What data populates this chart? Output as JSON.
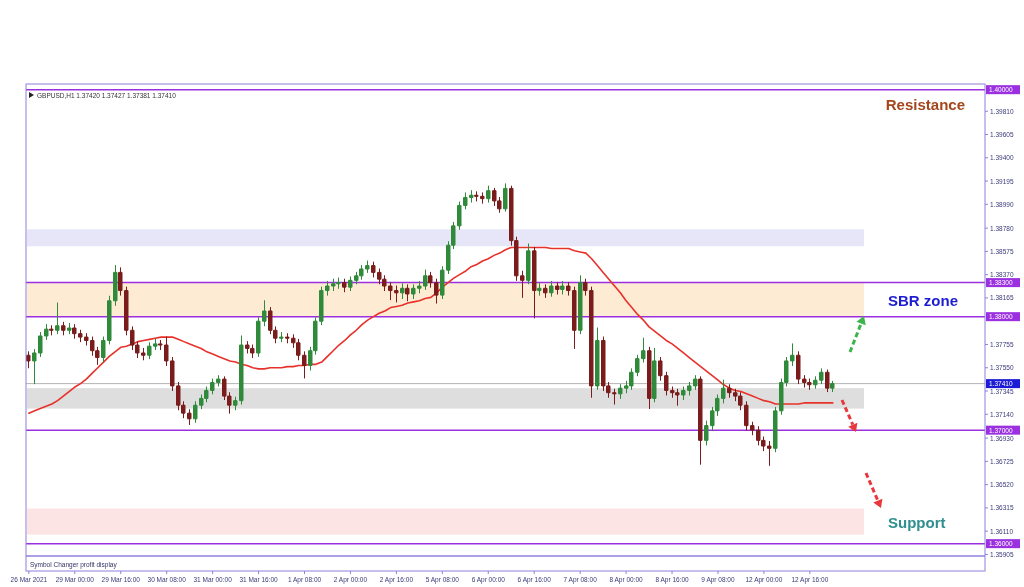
{
  "chart_data": {
    "type": "candlestick",
    "title": "GBPUSD,H1 1.37420 1.37427 1.37381 1.37410",
    "categories": [
      "26 Mar 2021",
      null,
      null,
      null,
      null,
      null,
      null,
      null,
      "29 Mar 00:00",
      null,
      null,
      null,
      null,
      null,
      null,
      null,
      "29 Mar 16:00",
      null,
      null,
      null,
      null,
      null,
      null,
      null,
      "30 Mar 08:00",
      null,
      null,
      null,
      null,
      null,
      null,
      null,
      "31 Mar 00:00",
      null,
      null,
      null,
      null,
      null,
      null,
      null,
      "31 Mar 16:00",
      null,
      null,
      null,
      null,
      null,
      null,
      null,
      "1 Apr 08:00",
      null,
      null,
      null,
      null,
      null,
      null,
      null,
      "2 Apr 00:00",
      null,
      null,
      null,
      null,
      null,
      null,
      null,
      "2 Apr 16:00",
      null,
      null,
      null,
      null,
      null,
      null,
      null,
      "5 Apr 08:00",
      null,
      null,
      null,
      null,
      null,
      null,
      null,
      "6 Apr 00:00",
      null,
      null,
      null,
      null,
      null,
      null,
      null,
      "6 Apr 16:00",
      null,
      null,
      null,
      null,
      null,
      null,
      null,
      "7 Apr 08:00",
      null,
      null,
      null,
      null,
      null,
      null,
      null,
      "8 Apr 00:00",
      null,
      null,
      null,
      null,
      null,
      null,
      null,
      "8 Apr 16:00",
      null,
      null,
      null,
      null,
      null,
      null,
      null,
      "9 Apr 08:00",
      null,
      null,
      null,
      null,
      null,
      null,
      null,
      "12 Apr 00:00",
      null,
      null,
      null,
      null,
      null,
      null,
      null,
      "12 Apr 16:00",
      null,
      null,
      null,
      null,
      null,
      null,
      null,
      null,
      null,
      null,
      null,
      null,
      null,
      null,
      null,
      null,
      null,
      null,
      null,
      null,
      null,
      null,
      null,
      null,
      null,
      null,
      null,
      null,
      null,
      null
    ],
    "ohlc": [
      [
        1.3766,
        1.3769,
        1.3755,
        1.3761
      ],
      [
        1.3761,
        1.3771,
        1.3741,
        1.3768
      ],
      [
        1.3768,
        1.3786,
        1.3765,
        1.3783
      ],
      [
        1.3783,
        1.3793,
        1.378,
        1.3789
      ],
      [
        1.3789,
        1.3792,
        1.3784,
        1.3788
      ],
      [
        1.3788,
        1.3812,
        1.3785,
        1.3792
      ],
      [
        1.3792,
        1.3795,
        1.3784,
        1.3788
      ],
      [
        1.3788,
        1.3794,
        1.3785,
        1.379
      ],
      [
        1.379,
        1.3793,
        1.3781,
        1.3785
      ],
      [
        1.3785,
        1.3788,
        1.3778,
        1.3782
      ],
      [
        1.3782,
        1.3785,
        1.3775,
        1.3779
      ],
      [
        1.3779,
        1.3782,
        1.3766,
        1.377
      ],
      [
        1.377,
        1.3773,
        1.3758,
        1.3764
      ],
      [
        1.3764,
        1.3782,
        1.376,
        1.3779
      ],
      [
        1.3779,
        1.3818,
        1.3776,
        1.3814
      ],
      [
        1.3814,
        1.3845,
        1.381,
        1.3839
      ],
      [
        1.3839,
        1.3843,
        1.3819,
        1.3823
      ],
      [
        1.3823,
        1.3826,
        1.3784,
        1.3788
      ],
      [
        1.3788,
        1.3791,
        1.3771,
        1.3775
      ],
      [
        1.3775,
        1.3778,
        1.3764,
        1.3768
      ],
      [
        1.3768,
        1.3772,
        1.3762,
        1.3766
      ],
      [
        1.3766,
        1.3777,
        1.3763,
        1.3774
      ],
      [
        1.3774,
        1.378,
        1.3771,
        1.3776
      ],
      [
        1.3776,
        1.3779,
        1.3771,
        1.3775
      ],
      [
        1.3775,
        1.3782,
        1.3757,
        1.3761
      ],
      [
        1.3761,
        1.3764,
        1.3735,
        1.3739
      ],
      [
        1.3739,
        1.3742,
        1.3718,
        1.3722
      ],
      [
        1.3722,
        1.3725,
        1.3711,
        1.3715
      ],
      [
        1.3715,
        1.3718,
        1.3705,
        1.371
      ],
      [
        1.371,
        1.3725,
        1.3707,
        1.3722
      ],
      [
        1.3722,
        1.3731,
        1.3719,
        1.3728
      ],
      [
        1.3728,
        1.3738,
        1.3725,
        1.3735
      ],
      [
        1.3735,
        1.3745,
        1.3732,
        1.3742
      ],
      [
        1.3742,
        1.3748,
        1.3739,
        1.3745
      ],
      [
        1.3745,
        1.3747,
        1.3727,
        1.373
      ],
      [
        1.373,
        1.3733,
        1.3715,
        1.3722
      ],
      [
        1.3722,
        1.3729,
        1.3718,
        1.3726
      ],
      [
        1.3726,
        1.3783,
        1.3723,
        1.3775
      ],
      [
        1.3775,
        1.3778,
        1.3768,
        1.3772
      ],
      [
        1.3772,
        1.3775,
        1.3764,
        1.3768
      ],
      [
        1.3768,
        1.3799,
        1.3765,
        1.3796
      ],
      [
        1.3796,
        1.3814,
        1.3792,
        1.3805
      ],
      [
        1.3805,
        1.3808,
        1.3785,
        1.3788
      ],
      [
        1.3788,
        1.3791,
        1.3777,
        1.3781
      ],
      [
        1.3781,
        1.3786,
        1.3778,
        1.3782
      ],
      [
        1.3782,
        1.3785,
        1.3777,
        1.3781
      ],
      [
        1.3781,
        1.3784,
        1.3773,
        1.3777
      ],
      [
        1.3777,
        1.378,
        1.3762,
        1.3766
      ],
      [
        1.3766,
        1.3769,
        1.3746,
        1.3757
      ],
      [
        1.3757,
        1.3773,
        1.3753,
        1.377
      ],
      [
        1.377,
        1.3799,
        1.3767,
        1.3796
      ],
      [
        1.3796,
        1.3826,
        1.3793,
        1.3823
      ],
      [
        1.3823,
        1.3831,
        1.3819,
        1.3827
      ],
      [
        1.3827,
        1.3833,
        1.3823,
        1.3829
      ],
      [
        1.3829,
        1.3834,
        1.3825,
        1.383
      ],
      [
        1.383,
        1.3833,
        1.3822,
        1.3826
      ],
      [
        1.3826,
        1.3835,
        1.3823,
        1.3832
      ],
      [
        1.3832,
        1.3839,
        1.3829,
        1.3836
      ],
      [
        1.3836,
        1.3845,
        1.3833,
        1.3842
      ],
      [
        1.3842,
        1.3849,
        1.3839,
        1.3845
      ],
      [
        1.3845,
        1.3848,
        1.3835,
        1.3839
      ],
      [
        1.3839,
        1.3842,
        1.3829,
        1.3833
      ],
      [
        1.3833,
        1.3836,
        1.3823,
        1.3827
      ],
      [
        1.3827,
        1.383,
        1.3815,
        1.3823
      ],
      [
        1.3823,
        1.3827,
        1.3813,
        1.3821
      ],
      [
        1.3821,
        1.3829,
        1.3816,
        1.3825
      ],
      [
        1.3825,
        1.3828,
        1.3814,
        1.382
      ],
      [
        1.382,
        1.3828,
        1.3816,
        1.3825
      ],
      [
        1.3825,
        1.3831,
        1.3821,
        1.3827
      ],
      [
        1.3827,
        1.3841,
        1.3824,
        1.3836
      ],
      [
        1.3836,
        1.3839,
        1.3826,
        1.383
      ],
      [
        1.383,
        1.3833,
        1.3812,
        1.3819
      ],
      [
        1.3819,
        1.3844,
        1.3816,
        1.3841
      ],
      [
        1.3841,
        1.3866,
        1.3838,
        1.3863
      ],
      [
        1.3863,
        1.3883,
        1.386,
        1.388
      ],
      [
        1.388,
        1.3901,
        1.3877,
        1.3898
      ],
      [
        1.3898,
        1.3909,
        1.3895,
        1.3905
      ],
      [
        1.3905,
        1.3911,
        1.3901,
        1.3907
      ],
      [
        1.3907,
        1.391,
        1.3902,
        1.3906
      ],
      [
        1.3906,
        1.3909,
        1.39,
        1.3904
      ],
      [
        1.3904,
        1.3915,
        1.3901,
        1.3911
      ],
      [
        1.3911,
        1.3913,
        1.3898,
        1.3902
      ],
      [
        1.3902,
        1.3905,
        1.3892,
        1.3895
      ],
      [
        1.3895,
        1.3917,
        1.3893,
        1.3913
      ],
      [
        1.3913,
        1.3915,
        1.3863,
        1.3867
      ],
      [
        1.3867,
        1.387,
        1.3832,
        1.3836
      ],
      [
        1.3836,
        1.384,
        1.3817,
        1.3832
      ],
      [
        1.3832,
        1.3864,
        1.3829,
        1.3858
      ],
      [
        1.3858,
        1.3861,
        1.3799,
        1.3823
      ],
      [
        1.3823,
        1.3829,
        1.3819,
        1.3825
      ],
      [
        1.3825,
        1.3828,
        1.3817,
        1.3821
      ],
      [
        1.3821,
        1.3831,
        1.3818,
        1.3827
      ],
      [
        1.3827,
        1.383,
        1.382,
        1.3824
      ],
      [
        1.3824,
        1.3831,
        1.382,
        1.3827
      ],
      [
        1.3827,
        1.383,
        1.3819,
        1.3823
      ],
      [
        1.3823,
        1.3826,
        1.3772,
        1.3788
      ],
      [
        1.3788,
        1.3836,
        1.3785,
        1.383
      ],
      [
        1.383,
        1.3833,
        1.3819,
        1.3823
      ],
      [
        1.3823,
        1.3826,
        1.3729,
        1.3739
      ],
      [
        1.3739,
        1.379,
        1.3736,
        1.3779
      ],
      [
        1.3779,
        1.3782,
        1.3735,
        1.3739
      ],
      [
        1.3739,
        1.3742,
        1.3729,
        1.3733
      ],
      [
        1.3733,
        1.3736,
        1.3723,
        1.3732
      ],
      [
        1.3732,
        1.374,
        1.3728,
        1.3737
      ],
      [
        1.3737,
        1.3743,
        1.3733,
        1.3739
      ],
      [
        1.3739,
        1.3754,
        1.3736,
        1.3751
      ],
      [
        1.3751,
        1.3766,
        1.3748,
        1.3763
      ],
      [
        1.3763,
        1.3781,
        1.376,
        1.377
      ],
      [
        1.377,
        1.3773,
        1.3719,
        1.3728
      ],
      [
        1.3728,
        1.3772,
        1.3725,
        1.3761
      ],
      [
        1.3761,
        1.3764,
        1.3744,
        1.3748
      ],
      [
        1.3748,
        1.3751,
        1.3731,
        1.3735
      ],
      [
        1.3735,
        1.3738,
        1.3729,
        1.3733
      ],
      [
        1.3733,
        1.3736,
        1.3722,
        1.3731
      ],
      [
        1.3731,
        1.3738,
        1.3727,
        1.3735
      ],
      [
        1.3735,
        1.3742,
        1.3731,
        1.3739
      ],
      [
        1.3739,
        1.3748,
        1.3736,
        1.3745
      ],
      [
        1.3745,
        1.3747,
        1.367,
        1.3691
      ],
      [
        1.3691,
        1.3708,
        1.3687,
        1.3704
      ],
      [
        1.3704,
        1.372,
        1.37,
        1.3717
      ],
      [
        1.3717,
        1.3731,
        1.3713,
        1.3728
      ],
      [
        1.3728,
        1.3744,
        1.3724,
        1.3737
      ],
      [
        1.3737,
        1.374,
        1.3729,
        1.3733
      ],
      [
        1.3733,
        1.3736,
        1.3726,
        1.373
      ],
      [
        1.373,
        1.3733,
        1.3718,
        1.3722
      ],
      [
        1.3722,
        1.3725,
        1.37,
        1.3704
      ],
      [
        1.3704,
        1.3707,
        1.3696,
        1.37
      ],
      [
        1.37,
        1.3703,
        1.3687,
        1.3691
      ],
      [
        1.3691,
        1.3694,
        1.3682,
        1.3686
      ],
      [
        1.3686,
        1.369,
        1.3669,
        1.3684
      ],
      [
        1.3684,
        1.372,
        1.3681,
        1.3717
      ],
      [
        1.3717,
        1.3745,
        1.3714,
        1.3742
      ],
      [
        1.3742,
        1.3764,
        1.3739,
        1.3761
      ],
      [
        1.3761,
        1.3776,
        1.3757,
        1.3766
      ],
      [
        1.3766,
        1.3769,
        1.3741,
        1.3745
      ],
      [
        1.3745,
        1.3748,
        1.3738,
        1.3742
      ],
      [
        1.3742,
        1.3745,
        1.3736,
        1.374
      ],
      [
        1.374,
        1.3747,
        1.3737,
        1.3744
      ],
      [
        1.3744,
        1.3754,
        1.3741,
        1.3751
      ],
      [
        1.3751,
        1.3753,
        1.3734,
        1.3737
      ],
      [
        1.3737,
        1.3743,
        1.3734,
        1.3741
      ],
      null,
      null,
      null,
      null,
      null,
      null,
      null,
      null,
      null,
      null,
      null,
      null,
      null,
      null,
      null,
      null,
      null,
      null,
      null,
      null,
      null,
      null,
      null,
      null,
      null,
      null
    ],
    "series": [
      {
        "type": "line",
        "color": "#e8312a",
        "values": [
          1.3715,
          1.3717,
          1.3719,
          1.3721,
          1.3723,
          1.3726,
          1.373,
          1.3734,
          1.3738,
          1.3741,
          1.3745,
          1.375,
          1.3755,
          1.376,
          1.3765,
          1.3769,
          1.3773,
          1.3774,
          1.3776,
          1.3778,
          1.3779,
          1.378,
          1.3781,
          1.3782,
          1.3782,
          1.3782,
          1.378,
          1.3778,
          1.3776,
          1.3774,
          1.3772,
          1.3769,
          1.3767,
          1.3765,
          1.3763,
          1.3761,
          1.376,
          1.3758,
          1.3757,
          1.3755,
          1.3754,
          1.3754,
          1.3755,
          1.3755,
          1.3755,
          1.3756,
          1.3756,
          1.3757,
          1.3757,
          1.3758,
          1.3758,
          1.376,
          1.3765,
          1.377,
          1.3775,
          1.3779,
          1.3784,
          1.3788,
          1.3793,
          1.3797,
          1.38,
          1.3803,
          1.3805,
          1.3808,
          1.3809,
          1.381,
          1.3812,
          1.3813,
          1.3814,
          1.3816,
          1.3817,
          1.3821,
          1.3826,
          1.383,
          1.3834,
          1.3837,
          1.384,
          1.3844,
          1.3846,
          1.3849,
          1.3851,
          1.3854,
          1.3856,
          1.3859,
          1.3861,
          1.3861,
          1.3861,
          1.3861,
          1.3861,
          1.3861,
          1.3861,
          1.386,
          1.386,
          1.386,
          1.386,
          1.3858,
          1.3857,
          1.3856,
          1.3851,
          1.3845,
          1.3839,
          1.3833,
          1.3827,
          1.3821,
          1.3814,
          1.3808,
          1.3802,
          1.3797,
          1.3791,
          1.3787,
          1.3783,
          1.3779,
          1.3776,
          1.3772,
          1.3768,
          1.3764,
          1.376,
          1.3756,
          1.3752,
          1.3748,
          1.3744,
          1.374,
          1.3737,
          1.3735,
          1.3734,
          1.3732,
          1.373,
          1.3728,
          1.3726,
          1.3725,
          1.3723,
          1.3723,
          1.3723,
          1.3723,
          1.3723,
          1.3724,
          1.3724,
          1.3724,
          1.3724,
          1.3724,
          1.3724,
          null,
          null,
          null,
          null,
          null,
          null,
          null,
          null,
          null,
          null,
          null,
          null,
          null,
          null,
          null,
          null,
          null,
          null,
          null,
          null,
          null,
          null,
          null,
          null,
          null,
          null
        ]
      }
    ],
    "ylim": [
      1.359,
      1.4005
    ],
    "yticks": [
      {
        "value": 1.4,
        "label": "1.40000"
      },
      {
        "value": 1.3981,
        "label": "1.39810"
      },
      {
        "value": 1.39605,
        "label": "1.39605"
      },
      {
        "value": 1.394,
        "label": "1.39400"
      },
      {
        "value": 1.39195,
        "label": "1.39195"
      },
      {
        "value": 1.3899,
        "label": "1.38990"
      },
      {
        "value": 1.3878,
        "label": "1.38780"
      },
      {
        "value": 1.38575,
        "label": "1.38575"
      },
      {
        "value": 1.3837,
        "label": "1.38370"
      },
      {
        "value": 1.383,
        "label": "1.38300"
      },
      {
        "value": 1.38165,
        "label": "1.38165"
      },
      {
        "value": 1.38,
        "label": "1.38000"
      },
      {
        "value": 1.37755,
        "label": "1.37755"
      },
      {
        "value": 1.3755,
        "label": "1.37550"
      },
      {
        "value": 1.3741,
        "label": "1.37410"
      },
      {
        "value": 1.37345,
        "label": "1.37345"
      },
      {
        "value": 1.3714,
        "label": "1.37140"
      },
      {
        "value": 1.37,
        "label": "1.37000"
      },
      {
        "value": 1.3693,
        "label": "1.36930"
      },
      {
        "value": 1.36725,
        "label": "1.36725"
      },
      {
        "value": 1.3652,
        "label": "1.36520"
      },
      {
        "value": 1.36315,
        "label": "1.36315"
      },
      {
        "value": 1.3611,
        "label": "1.36110"
      },
      {
        "value": 1.36,
        "label": "1.36000"
      },
      {
        "value": 1.35905,
        "label": "1.35905"
      }
    ],
    "ref_lines": [
      {
        "axis": "y",
        "value": 1.4,
        "label": "Resistance",
        "color": "#9b30e0"
      },
      {
        "axis": "y",
        "value": 1.383,
        "color": "#9b30e0"
      },
      {
        "axis": "y",
        "value": 1.38,
        "color": "#9b30e0"
      },
      {
        "axis": "y",
        "value": 1.3741,
        "color": "#b4b4b4"
      },
      {
        "axis": "y",
        "value": 1.37,
        "color": "#9b30e0"
      },
      {
        "axis": "y",
        "value": 1.36,
        "color": "#9b30e0"
      }
    ],
    "bands": [
      {
        "axis": "y",
        "from": 1.3862,
        "to": 1.3877,
        "color": "#e6e6f8"
      },
      {
        "axis": "y",
        "from": 1.38,
        "to": 1.383,
        "label": "SBR zone",
        "color": "#fdebd3"
      },
      {
        "axis": "y",
        "from": 1.3719,
        "to": 1.3737,
        "color": "#dedede"
      },
      {
        "axis": "y",
        "from": 1.3608,
        "to": 1.3631,
        "label": "Support",
        "color": "#fde4e4"
      }
    ],
    "annotations": [
      "Symbol Changer profit display"
    ]
  }
}
